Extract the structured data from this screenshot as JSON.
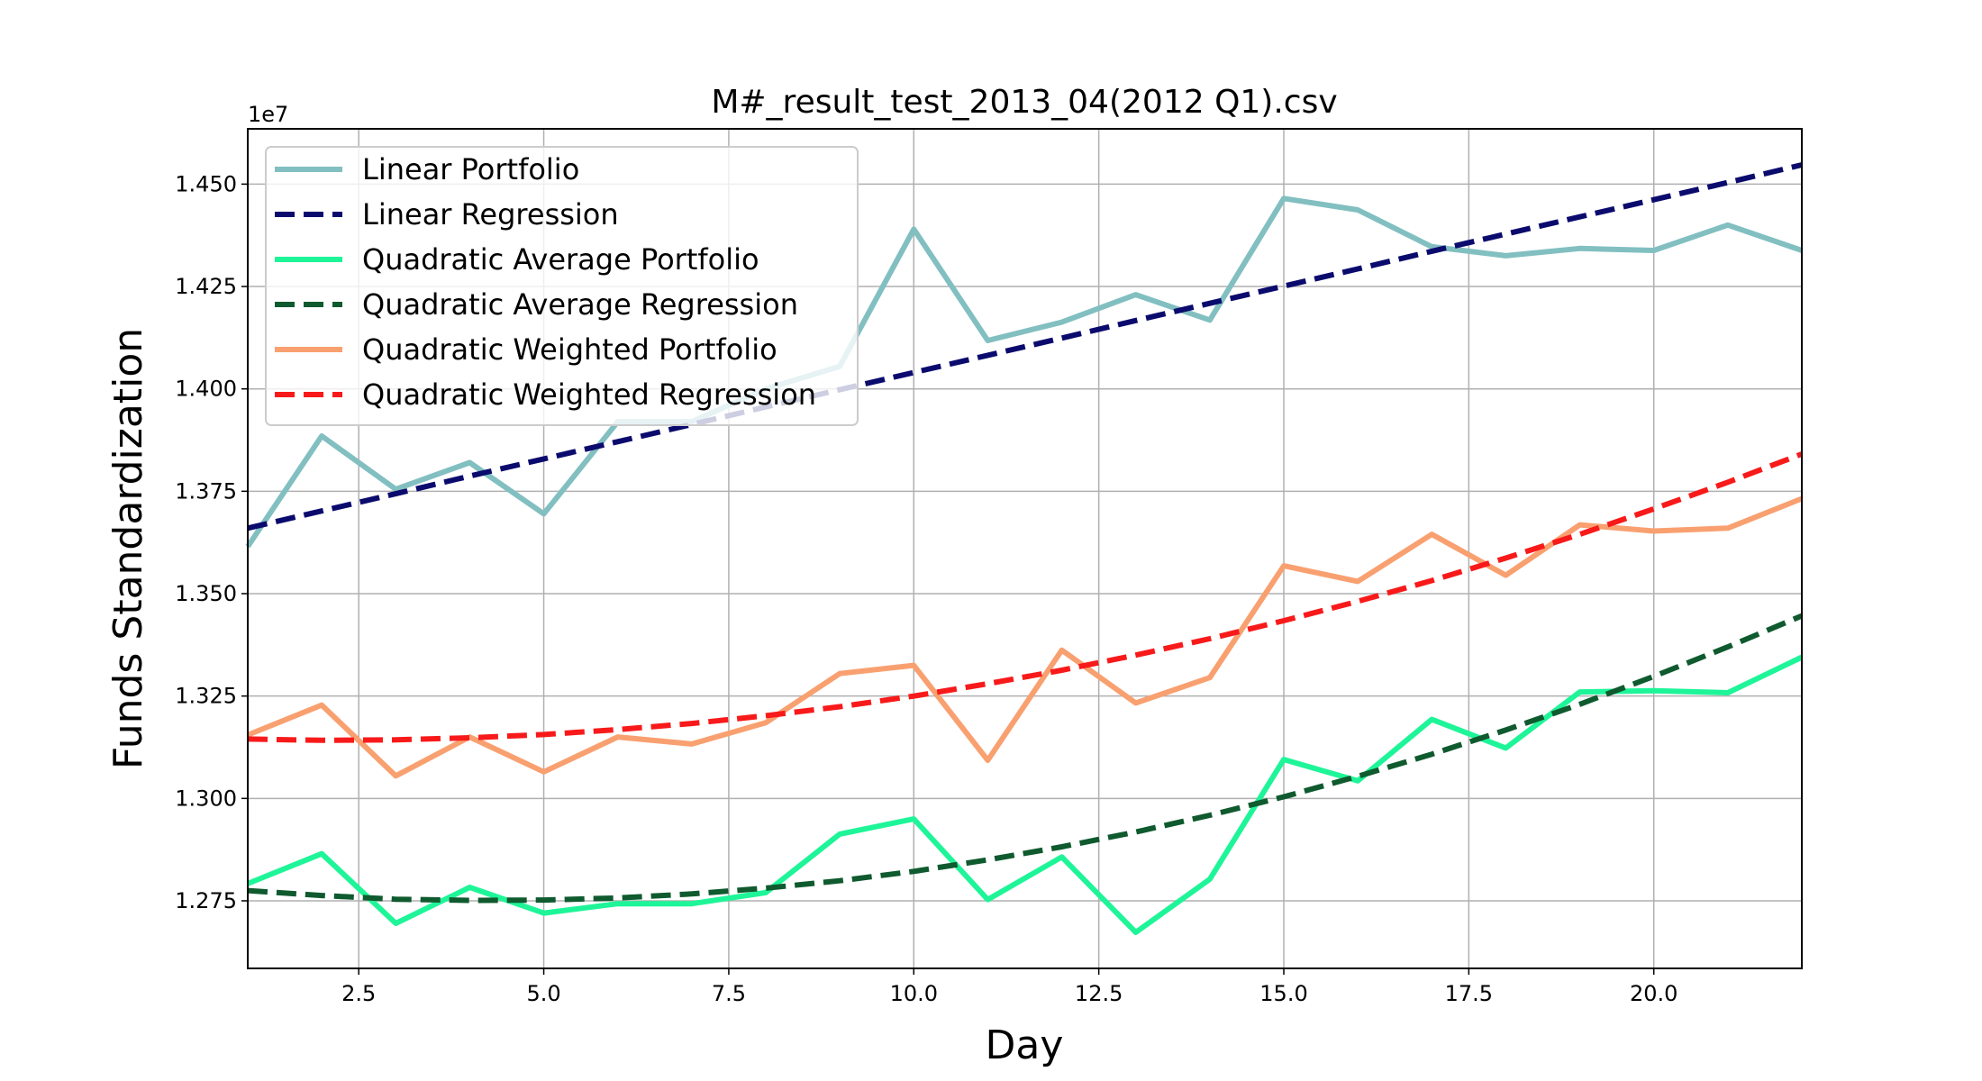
{
  "chart_data": {
    "type": "line",
    "title": "M#_result_test_2013_04(2012 Q1).csv",
    "xlabel": "Day",
    "ylabel": "Funds Standardization",
    "y_offset_label": "1e7",
    "xlim": [
      1,
      22
    ],
    "ylim": [
      1.2585,
      1.4635
    ],
    "x_ticks": [
      2.5,
      5.0,
      7.5,
      10.0,
      12.5,
      15.0,
      17.5,
      20.0
    ],
    "x_tick_labels": [
      "2.5",
      "5.0",
      "7.5",
      "10.0",
      "12.5",
      "15.0",
      "17.5",
      "20.0"
    ],
    "y_ticks": [
      1.275,
      1.3,
      1.325,
      1.35,
      1.375,
      1.4,
      1.425,
      1.45
    ],
    "y_tick_labels": [
      "1.275",
      "1.300",
      "1.325",
      "1.350",
      "1.375",
      "1.400",
      "1.425",
      "1.450"
    ],
    "grid": true,
    "legend_position": "top-left",
    "x": [
      1,
      2,
      3,
      4,
      5,
      6,
      7,
      8,
      9,
      10,
      11,
      12,
      13,
      14,
      15,
      16,
      17,
      18,
      19,
      20,
      21,
      22
    ],
    "series": [
      {
        "name": "Linear Portfolio",
        "style": "solid",
        "color": "#82bfc1",
        "values": [
          1.3615,
          1.3885,
          1.3755,
          1.382,
          1.3695,
          1.392,
          1.392,
          1.4,
          1.4055,
          1.439,
          1.4118,
          1.4163,
          1.423,
          1.4168,
          1.4465,
          1.4437,
          1.4347,
          1.4325,
          1.4343,
          1.4338,
          1.44,
          1.4338
        ]
      },
      {
        "name": "Linear Regression",
        "style": "dashed",
        "color": "#0b0b6e",
        "values": [
          1.366,
          1.3702,
          1.3744,
          1.3787,
          1.3829,
          1.3871,
          1.3913,
          1.3956,
          1.3998,
          1.404,
          1.4082,
          1.4124,
          1.4167,
          1.4209,
          1.4251,
          1.4293,
          1.4336,
          1.4378,
          1.442,
          1.4462,
          1.4504,
          1.4547
        ]
      },
      {
        "name": "Quadratic Average Portfolio",
        "style": "solid",
        "color": "#1ef598",
        "values": [
          1.2792,
          1.2865,
          1.2695,
          1.2783,
          1.272,
          1.2743,
          1.2743,
          1.277,
          1.2913,
          1.295,
          1.2753,
          1.2857,
          1.2673,
          1.2803,
          1.3095,
          1.3043,
          1.3193,
          1.3123,
          1.326,
          1.3263,
          1.3258,
          1.3345
        ]
      },
      {
        "name": "Quadratic Average Regression",
        "style": "dashed",
        "color": "#0f5a2e",
        "values": [
          1.2775,
          1.2763,
          1.2754,
          1.2751,
          1.2752,
          1.2757,
          1.2767,
          1.2781,
          1.2799,
          1.2822,
          1.285,
          1.2882,
          1.2918,
          1.2959,
          1.3004,
          1.3054,
          1.3108,
          1.3167,
          1.323,
          1.3298,
          1.337,
          1.3446
        ]
      },
      {
        "name": "Quadratic Weighted Portfolio",
        "style": "solid",
        "color": "#f9a070",
        "values": [
          1.3155,
          1.3228,
          1.3055,
          1.315,
          1.3065,
          1.315,
          1.3133,
          1.3185,
          1.3305,
          1.3325,
          1.3093,
          1.3362,
          1.3233,
          1.3295,
          1.3568,
          1.353,
          1.3645,
          1.3545,
          1.3668,
          1.3653,
          1.366,
          1.3732
        ]
      },
      {
        "name": "Quadratic Weighted Regression",
        "style": "dashed",
        "color": "#f81a1a",
        "values": [
          1.3145,
          1.3142,
          1.3143,
          1.3148,
          1.3156,
          1.3168,
          1.3183,
          1.3202,
          1.3224,
          1.325,
          1.328,
          1.3313,
          1.335,
          1.339,
          1.3434,
          1.3481,
          1.3532,
          1.3587,
          1.3645,
          1.3707,
          1.3772,
          1.3841
        ]
      }
    ]
  }
}
